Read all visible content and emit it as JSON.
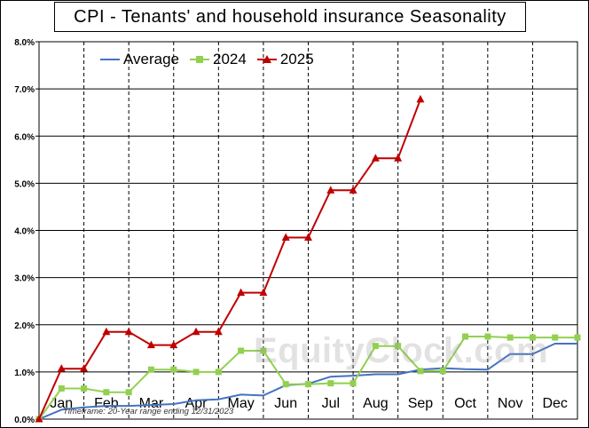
{
  "title": "CPI - Tenants' and household insurance Seasonality",
  "watermark": "EquityClock.com",
  "timeframe": "Timeframe: 20-Year range ending 12/31/2023",
  "chart_data": {
    "type": "line",
    "title": "CPI - Tenants' and household insurance Seasonality",
    "categories": [
      "Jan",
      "Feb",
      "Mar",
      "Apr",
      "May",
      "Jun",
      "Jul",
      "Aug",
      "Sep",
      "Oct",
      "Nov",
      "Dec"
    ],
    "ylim": [
      0,
      8
    ],
    "y_ticks": [
      "0.0%",
      "1.0%",
      "2.0%",
      "3.0%",
      "4.0%",
      "5.0%",
      "6.0%",
      "7.0%",
      "8.0%"
    ],
    "grid": "dashed vertical month separators, solid horizontal gridlines",
    "legend_position": "top-left",
    "series": [
      {
        "name": "Average",
        "color": "#4472C4",
        "marker": "none",
        "x": [
          0,
          0.5,
          1,
          1.5,
          2,
          2.5,
          3,
          3.5,
          4,
          4.5,
          5,
          5.5,
          6,
          6.5,
          7,
          7.5,
          8,
          8.5,
          9,
          9.5,
          10,
          10.5,
          11,
          11.5,
          12
        ],
        "values": [
          0.0,
          0.2,
          0.25,
          0.28,
          0.28,
          0.3,
          0.32,
          0.4,
          0.42,
          0.52,
          0.5,
          0.72,
          0.75,
          0.9,
          0.92,
          0.95,
          0.95,
          1.05,
          1.08,
          1.06,
          1.05,
          1.38,
          1.38,
          1.6,
          1.6
        ]
      },
      {
        "name": "2024",
        "color": "#92D050",
        "marker": "square",
        "x": [
          0,
          0.5,
          1,
          1.5,
          2,
          2.5,
          3,
          3.5,
          4,
          4.5,
          5,
          5.5,
          6,
          6.5,
          7,
          7.5,
          8,
          8.5,
          9,
          9.5,
          10,
          10.5,
          11,
          11.5,
          12
        ],
        "values": [
          0.0,
          0.65,
          0.65,
          0.57,
          0.57,
          1.05,
          1.05,
          1.0,
          1.0,
          1.45,
          1.45,
          0.74,
          0.74,
          0.76,
          0.76,
          1.55,
          1.55,
          1.02,
          1.02,
          1.75,
          1.75,
          1.73,
          1.73,
          1.73,
          1.73
        ]
      },
      {
        "name": "2025",
        "color": "#C00000",
        "marker": "triangle",
        "x": [
          0,
          0.5,
          1,
          1.5,
          2,
          2.5,
          3,
          3.5,
          4,
          4.5,
          5,
          5.5,
          6,
          6.5,
          7,
          7.5,
          8,
          8.5
        ],
        "values": [
          0.0,
          1.07,
          1.07,
          1.85,
          1.85,
          1.57,
          1.57,
          1.85,
          1.85,
          2.68,
          2.68,
          3.85,
          3.85,
          4.85,
          4.85,
          5.53,
          5.53,
          6.78
        ]
      }
    ]
  }
}
